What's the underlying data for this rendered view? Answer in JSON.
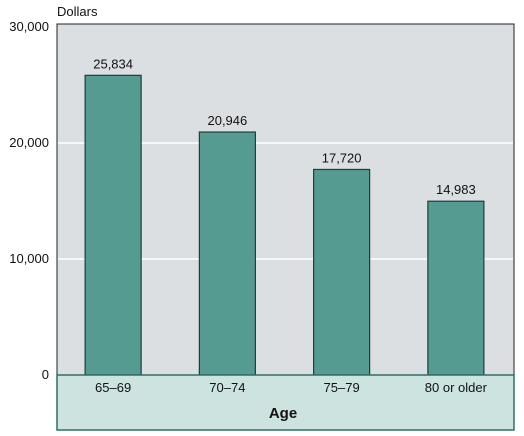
{
  "chart_data": {
    "type": "bar",
    "title": "",
    "ylabel": "Dollars",
    "xlabel": "Age",
    "categories": [
      "65–69",
      "70–74",
      "75–79",
      "80 or older"
    ],
    "values": [
      25834,
      20946,
      17720,
      14983
    ],
    "value_labels": [
      "25,834",
      "20,946",
      "17,720",
      "14,983"
    ],
    "ylim": [
      0,
      30000
    ],
    "yticks": [
      0,
      10000,
      20000,
      30000
    ],
    "ytick_labels": [
      "0",
      "10,000",
      "20,000",
      "30,000"
    ],
    "grid": true,
    "colors": {
      "bar_fill": "#569b91",
      "bar_stroke": "#1b3f3a",
      "plot_bg": "#dcdfe2",
      "gridline": "#ffffff",
      "category_band": "#cde3e0",
      "category_band_border": "#2e6f67"
    }
  }
}
